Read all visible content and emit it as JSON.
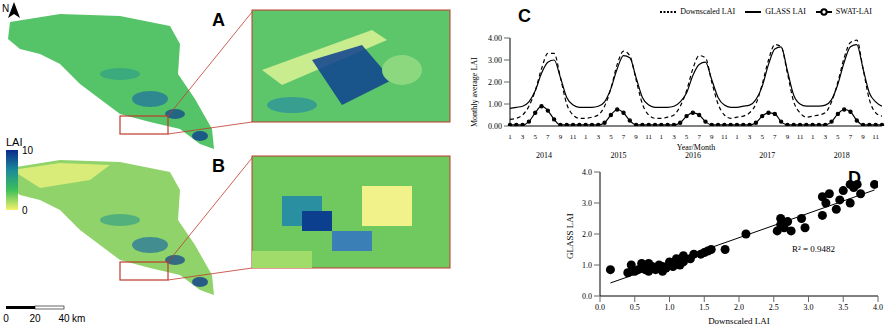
{
  "maps": {
    "north": "N",
    "panels": [
      {
        "label": "A"
      },
      {
        "label": "B"
      }
    ],
    "colorbar": {
      "label": "LAI",
      "range": [
        0,
        10
      ],
      "ticks": [
        10,
        0
      ],
      "colors": [
        "#f4f26a",
        "#3cbf5a",
        "#1b8a9a",
        "#0b2a8c"
      ]
    },
    "scale_bar": {
      "ticks": [
        0,
        20,
        40
      ],
      "unit": "km"
    }
  },
  "chart_data": [
    {
      "type": "line",
      "title": "C",
      "x_label": "Year/Month",
      "y_label": "Monthly average LAI",
      "categories": [
        "1",
        null,
        "3",
        null,
        "5",
        null,
        "7",
        null,
        "9",
        null,
        "11",
        null,
        "1",
        null,
        "3",
        null,
        "5",
        null,
        "7",
        null,
        "9",
        null,
        "11",
        null,
        "1",
        null,
        "3",
        null,
        "5",
        null,
        "7",
        null,
        "9",
        null,
        "11",
        null,
        "1",
        null,
        "3",
        null,
        "5",
        null,
        "7",
        null,
        "9",
        null,
        "11",
        null,
        "1",
        null,
        "3",
        null,
        "5",
        null,
        "7",
        null,
        "9",
        null,
        "11",
        null
      ],
      "years": [
        "2014",
        "2015",
        "2016",
        "2017",
        "2018"
      ],
      "ylim": [
        0,
        4
      ],
      "yticks": [
        {
          "value": 0,
          "label": "0.00"
        },
        {
          "value": 1,
          "label": "1.00"
        },
        {
          "value": 2,
          "label": "2.00"
        },
        {
          "value": 3,
          "label": "3.00"
        },
        {
          "value": 4,
          "label": "4.00"
        }
      ],
      "legend": "top-right",
      "series": [
        {
          "name": "Downscaled LAI",
          "color": "#000000",
          "line_style": "dashed",
          "values": [
            0.3,
            0.35,
            0.5,
            0.9,
            1.6,
            2.6,
            3.3,
            3.3,
            2.2,
            1.0,
            0.5,
            0.35,
            0.35,
            0.4,
            0.5,
            0.9,
            1.7,
            2.8,
            3.4,
            3.2,
            2.1,
            1.0,
            0.5,
            0.35,
            0.35,
            0.4,
            0.5,
            0.9,
            1.6,
            2.6,
            3.2,
            3.1,
            2.0,
            1.0,
            0.5,
            0.35,
            0.4,
            0.45,
            0.6,
            1.0,
            1.9,
            3.0,
            3.7,
            3.6,
            2.4,
            1.1,
            0.6,
            0.4,
            0.45,
            0.5,
            0.6,
            1.1,
            2.0,
            3.1,
            3.8,
            3.9,
            2.6,
            1.2,
            0.6,
            0.45
          ]
        },
        {
          "name": "GLASS LAI",
          "color": "#000000",
          "line_style": "solid",
          "values": [
            0.8,
            0.85,
            0.9,
            1.1,
            1.6,
            2.4,
            2.9,
            3.0,
            2.2,
            1.3,
            0.95,
            0.85,
            0.85,
            0.85,
            0.9,
            1.1,
            1.7,
            2.6,
            3.2,
            3.1,
            2.2,
            1.3,
            0.95,
            0.85,
            0.85,
            0.85,
            0.9,
            1.1,
            1.5,
            2.3,
            2.8,
            2.9,
            2.1,
            1.3,
            0.95,
            0.85,
            0.85,
            0.9,
            0.95,
            1.2,
            1.8,
            2.8,
            3.5,
            3.6,
            2.5,
            1.4,
            1.0,
            0.9,
            0.9,
            0.9,
            0.95,
            1.2,
            1.9,
            2.9,
            3.6,
            3.7,
            2.6,
            1.5,
            1.1,
            0.9
          ]
        },
        {
          "name": "SWAT-LAI",
          "color": "#000000",
          "line_style": "solid",
          "marker": "circle",
          "values": [
            0.05,
            0.05,
            0.05,
            0.2,
            0.6,
            0.9,
            0.7,
            0.3,
            0.05,
            0.05,
            0.05,
            0.05,
            0.05,
            0.05,
            0.05,
            0.15,
            0.5,
            0.75,
            0.6,
            0.25,
            0.05,
            0.05,
            0.05,
            0.05,
            0.05,
            0.05,
            0.05,
            0.15,
            0.45,
            0.6,
            0.5,
            0.2,
            0.05,
            0.05,
            0.05,
            0.05,
            0.05,
            0.05,
            0.05,
            0.15,
            0.45,
            0.6,
            0.55,
            0.2,
            0.05,
            0.05,
            0.05,
            0.05,
            0.05,
            0.05,
            0.05,
            0.2,
            0.55,
            0.75,
            0.65,
            0.25,
            0.05,
            0.05,
            0.05,
            0.05
          ]
        }
      ]
    },
    {
      "type": "scatter",
      "title": "D",
      "x_label": "Downscaled LAI",
      "y_label": "GLASS LAI",
      "annotation": "R² = 0.9482",
      "color": "#000000",
      "xlim": [
        0,
        4
      ],
      "ylim": [
        0,
        4
      ],
      "xticks": [
        {
          "value": 0,
          "label": "0.0"
        },
        {
          "value": 0.5,
          "label": "0.5"
        },
        {
          "value": 1,
          "label": "1.0"
        },
        {
          "value": 1.5,
          "label": "1.5"
        },
        {
          "value": 2,
          "label": "2.0"
        },
        {
          "value": 2.5,
          "label": "2.5"
        },
        {
          "value": 3,
          "label": "3.0"
        },
        {
          "value": 3.5,
          "label": "3.5"
        },
        {
          "value": 4,
          "label": "4.0"
        }
      ],
      "yticks": [
        {
          "value": 0,
          "label": "0.0"
        },
        {
          "value": 1,
          "label": "1.0"
        },
        {
          "value": 2,
          "label": "2.0"
        },
        {
          "value": 3,
          "label": "3.0"
        },
        {
          "value": 4,
          "label": "4.0"
        }
      ],
      "x": [
        0.15,
        0.4,
        0.45,
        0.5,
        0.55,
        0.6,
        0.6,
        0.65,
        0.7,
        0.75,
        0.8,
        0.8,
        0.85,
        0.9,
        0.9,
        0.95,
        1.0,
        1.0,
        1.05,
        1.1,
        1.15,
        1.2,
        1.3,
        1.35,
        1.45,
        1.5,
        1.6,
        1.8,
        2.1,
        2.55,
        2.6,
        2.6,
        2.65,
        2.7,
        2.75,
        2.9,
        2.95,
        3.2,
        3.2,
        3.25,
        3.3,
        3.4,
        3.45,
        3.5,
        3.6,
        3.6,
        3.65,
        3.7,
        3.75,
        3.95,
        1.2,
        0.7,
        1.55
      ],
      "values": [
        0.85,
        0.75,
        1.0,
        0.8,
        0.85,
        0.9,
        1.05,
        0.85,
        0.8,
        0.95,
        0.9,
        0.85,
        1.0,
        0.95,
        0.8,
        0.9,
        1.0,
        1.1,
        0.95,
        1.2,
        1.0,
        1.3,
        1.2,
        1.35,
        1.35,
        1.4,
        1.5,
        1.5,
        2.0,
        2.1,
        2.3,
        2.5,
        2.2,
        2.4,
        2.1,
        2.5,
        2.2,
        2.6,
        3.2,
        3.0,
        3.3,
        2.8,
        3.1,
        3.4,
        3.0,
        3.6,
        3.5,
        3.6,
        3.3,
        3.6,
        1.1,
        1.05,
        1.45
      ],
      "trendline": {
        "x": [
          0.15,
          3.95
        ],
        "y": [
          0.42,
          3.42
        ]
      }
    }
  ]
}
